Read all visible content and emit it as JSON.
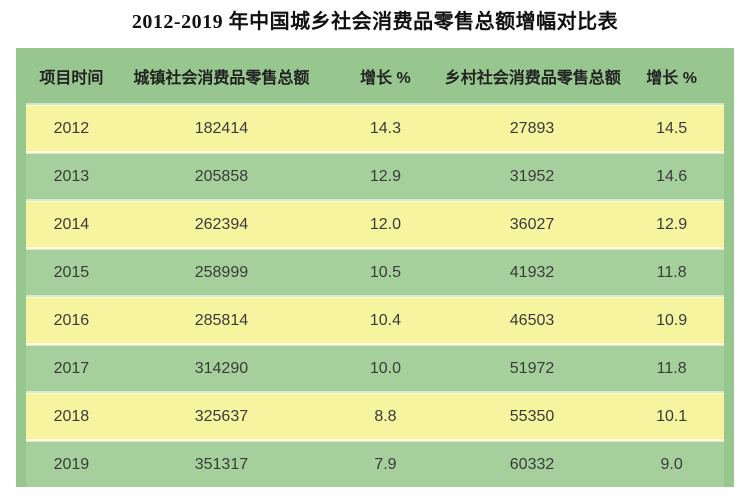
{
  "title": "2012-2019 年中国城乡社会消费品零售总额增幅对比表",
  "colors": {
    "table_frame_green": "#97c68e",
    "row_green": "#a5d09c",
    "row_yellow": "#f7f49f",
    "title_text": "#111111",
    "header_text": "#222222",
    "cell_text": "#3b3b3b",
    "page_background": "#ffffff"
  },
  "table": {
    "headers": [
      "项目时间",
      "城镇社会消费品零售总额",
      "增长 %",
      "乡村社会消费品零售总额",
      "增长 %"
    ],
    "rows": [
      [
        "2012",
        "182414",
        "14.3",
        "27893",
        "14.5"
      ],
      [
        "2013",
        "205858",
        "12.9",
        "31952",
        "14.6"
      ],
      [
        "2014",
        "262394",
        "12.0",
        "36027",
        "12.9"
      ],
      [
        "2015",
        "258999",
        "10.5",
        "41932",
        "11.8"
      ],
      [
        "2016",
        "285814",
        "10.4",
        "46503",
        "10.9"
      ],
      [
        "2017",
        "314290",
        "10.0",
        "51972",
        "11.8"
      ],
      [
        "2018",
        "325637",
        "8.8",
        "55350",
        "10.1"
      ],
      [
        "2019",
        "351317",
        "7.9",
        "60332",
        "9.0"
      ]
    ]
  },
  "chart_data": {
    "type": "table",
    "title": "2012-2019 年中国城乡社会消费品零售总额增幅对比表",
    "columns": [
      "项目时间",
      "城镇社会消费品零售总额",
      "增长 %",
      "乡村社会消费品零售总额",
      "增长 %"
    ],
    "categories": [
      "2012",
      "2013",
      "2014",
      "2015",
      "2016",
      "2017",
      "2018",
      "2019"
    ],
    "series": [
      {
        "name": "城镇社会消费品零售总额",
        "values": [
          182414,
          205858,
          262394,
          258999,
          285814,
          314290,
          325637,
          351317
        ]
      },
      {
        "name": "城镇增长 %",
        "values": [
          14.3,
          12.9,
          12.0,
          10.5,
          10.4,
          10.0,
          8.8,
          7.9
        ]
      },
      {
        "name": "乡村社会消费品零售总额",
        "values": [
          27893,
          31952,
          36027,
          41932,
          46503,
          51972,
          55350,
          60332
        ]
      },
      {
        "name": "乡村增长 %",
        "values": [
          14.5,
          14.6,
          12.9,
          11.8,
          10.9,
          11.8,
          10.1,
          9.0
        ]
      }
    ],
    "layout": {
      "row_striping": [
        "yellow",
        "green"
      ],
      "header_background": "green",
      "grid": false
    }
  }
}
